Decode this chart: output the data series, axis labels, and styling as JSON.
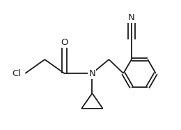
{
  "bg_color": "#ffffff",
  "line_color": "#1a1a1a",
  "line_width": 1.3,
  "font_size": 9.5,
  "xlim": [
    -4.2,
    3.5
  ],
  "ylim": [
    -2.2,
    3.2
  ],
  "figsize": [
    2.6,
    1.88
  ],
  "dpi": 100
}
